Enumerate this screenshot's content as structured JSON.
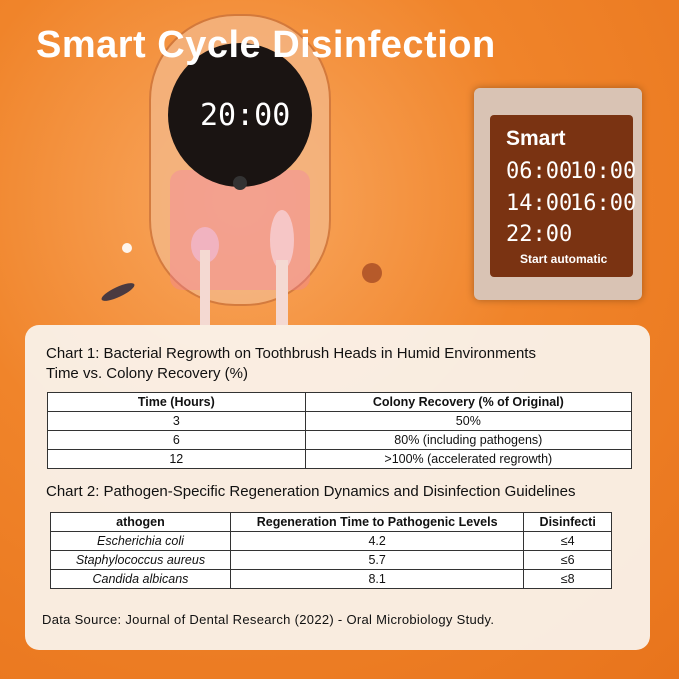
{
  "header": {
    "title": "Smart Cycle Disinfection"
  },
  "device": {
    "display": "20:00"
  },
  "panel": {
    "title": "Smart",
    "times": [
      "06:00",
      "10:00",
      "14:00",
      "16:00",
      "22:00"
    ],
    "caption": "Start automatic"
  },
  "chart1": {
    "title": "Chart 1: Bacterial Regrowth on Toothbrush Heads in Humid Environments",
    "subtitle": "Time vs. Colony Recovery (%)",
    "table": {
      "headers": [
        "Time (Hours)",
        "Colony Recovery (% of Original)"
      ],
      "rows": [
        [
          "3",
          "50%"
        ],
        [
          "6",
          "80% (including pathogens)"
        ],
        [
          "12",
          ">100% (accelerated regrowth)"
        ]
      ]
    }
  },
  "chart2": {
    "title": "Chart 2: Pathogen-Specific Regeneration Dynamics and Disinfection Guidelines",
    "table": {
      "headers": [
        "athogen",
        "Regeneration Time to Pathogenic Levels",
        "Disinfecti"
      ],
      "rows": [
        [
          "Escherichia coli",
          "4.2",
          "≤4"
        ],
        [
          "Staphylococcus aureus",
          "5.7",
          "≤6"
        ],
        [
          "Candida albicans",
          "8.1",
          "≤8"
        ]
      ]
    }
  },
  "source": "Data Source: Journal of Dental Research (2022) - Oral Microbiology Study."
}
